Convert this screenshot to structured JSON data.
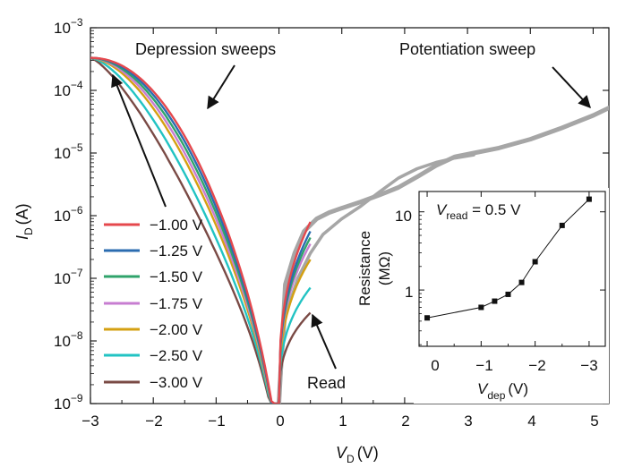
{
  "chart_data": [
    {
      "type": "line",
      "name": "main",
      "xlabel": "V",
      "xlabel_sub": "D",
      "xlabel_unit": "(V)",
      "ylabel": "I",
      "ylabel_sub": "D",
      "ylabel_unit": "(A)",
      "xlim": [
        -3,
        5.25
      ],
      "ylim_log10": [
        -9,
        -3
      ],
      "x_ticks": [
        -3,
        -2,
        -1,
        0,
        1,
        2,
        3,
        4,
        5
      ],
      "x_tick_labels": [
        "−3",
        "−2",
        "−1",
        "0",
        "1",
        "2",
        "3",
        "4",
        "5"
      ],
      "y_ticks_log10": [
        -9,
        -8,
        -7,
        -6,
        -5,
        -4,
        -3
      ],
      "y_tick_labels": [
        {
          "base": "10",
          "exp": "−9"
        },
        {
          "base": "10",
          "exp": "−8"
        },
        {
          "base": "10",
          "exp": "−7"
        },
        {
          "base": "10",
          "exp": "−6"
        },
        {
          "base": "10",
          "exp": "−5"
        },
        {
          "base": "10",
          "exp": "−4"
        },
        {
          "base": "10",
          "exp": "−3"
        }
      ],
      "potentiation_sweep": {
        "color": "#a6a6a6",
        "upper_branch": {
          "x": [
            0.0,
            0.1,
            0.25,
            0.4,
            0.6,
            0.8,
            1.0,
            1.3,
            1.6,
            1.9,
            2.2,
            2.5,
            2.8,
            3.1,
            3.5,
            4.0,
            4.5,
            5.0,
            5.25
          ],
          "log10_y": [
            -9.0,
            -7.1,
            -6.6,
            -6.25,
            -6.05,
            -5.95,
            -5.88,
            -5.78,
            -5.67,
            -5.55,
            -5.38,
            -5.2,
            -5.06,
            -5.0,
            -4.92,
            -4.78,
            -4.6,
            -4.4,
            -4.28
          ]
        },
        "lower_branch": {
          "x": [
            0.0,
            0.1,
            0.3,
            0.5,
            0.7,
            1.0,
            1.3,
            1.6,
            1.9,
            2.2,
            2.5,
            2.8,
            3.1
          ],
          "log10_y": [
            -9.0,
            -7.6,
            -7.0,
            -6.6,
            -6.3,
            -6.05,
            -5.85,
            -5.62,
            -5.4,
            -5.25,
            -5.15,
            -5.08,
            -5.03
          ]
        }
      },
      "legend": [
        {
          "label": "−1.00 V",
          "color": "#e5484d",
          "v_dep": -1.0,
          "end_log10_y": -6.1
        },
        {
          "label": "−1.25 V",
          "color": "#2b6cb0",
          "v_dep": -1.25,
          "end_log10_y": -6.25
        },
        {
          "label": "−1.50 V",
          "color": "#2fa36b",
          "v_dep": -1.5,
          "end_log10_y": -6.35
        },
        {
          "label": "−1.75 V",
          "color": "#c77dd1",
          "v_dep": -1.75,
          "end_log10_y": -6.45
        },
        {
          "label": "−2.00 V",
          "color": "#d4a012",
          "v_dep": -2.0,
          "end_log10_y": -6.7
        },
        {
          "label": "−2.50 V",
          "color": "#22c3c3",
          "v_dep": -2.5,
          "end_log10_y": -7.15
        },
        {
          "label": "−3.00 V",
          "color": "#7a4a45",
          "v_dep": -3.0,
          "end_log10_y": -7.55
        }
      ],
      "depression_common_start": {
        "x": -3.0,
        "log10_y": -3.48
      },
      "annotations": [
        {
          "text": "Depression sweeps"
        },
        {
          "text": "Potentiation sweep"
        },
        {
          "text": "Read"
        }
      ]
    },
    {
      "type": "line",
      "name": "inset",
      "title_prefix": "V",
      "title_sub": "read",
      "title_suffix": " = 0.5 V",
      "xlabel": "V",
      "xlabel_sub": "dep",
      "xlabel_unit": "(V)",
      "ylabel_line1": "Resistance",
      "ylabel_line2": "(MΩ)",
      "x_ticks": [
        0,
        -1,
        -2,
        -3
      ],
      "x_tick_labels": [
        "0",
        "−1",
        "−2",
        "−3"
      ],
      "y_ticks": [
        1,
        10
      ],
      "y_tick_labels": [
        "1",
        "10"
      ],
      "xlim": [
        0.15,
        -3.3
      ],
      "ylim_log10": [
        -0.72,
        1.26
      ],
      "x": [
        0,
        -1.0,
        -1.25,
        -1.5,
        -1.75,
        -2.0,
        -2.5,
        -3.0
      ],
      "y": [
        0.44,
        0.6,
        0.72,
        0.88,
        1.25,
        2.3,
        6.7,
        14.5
      ]
    }
  ]
}
